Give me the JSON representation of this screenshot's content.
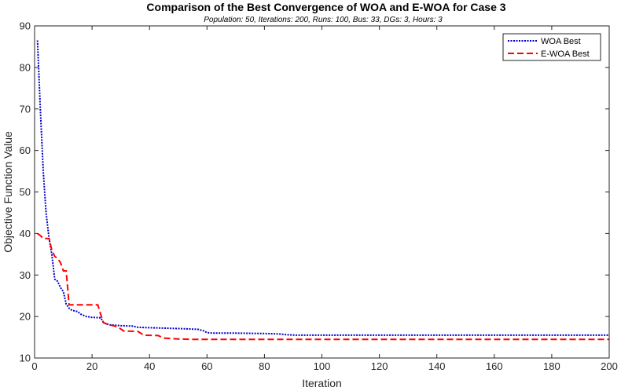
{
  "chart_data": {
    "type": "line",
    "title": "Comparison of the Best Convergence of WOA and E-WOA for Case 3",
    "subtitle": "Population: 50, Iterations: 200, Runs: 100, Bus: 33, DGs: 3, Hours: 3",
    "xlabel": "Iteration",
    "ylabel": "Objective Function Value",
    "xlim": [
      0,
      200
    ],
    "ylim": [
      10,
      90
    ],
    "xticks": [
      0,
      20,
      40,
      60,
      80,
      100,
      120,
      140,
      160,
      180,
      200
    ],
    "yticks": [
      10,
      20,
      30,
      40,
      50,
      60,
      70,
      80,
      90
    ],
    "grid": false,
    "legend_position": "top-right",
    "series": [
      {
        "name": "WOA Best",
        "color": "#0000cc",
        "style": "dotted",
        "points": [
          [
            1,
            86.5
          ],
          [
            2,
            70
          ],
          [
            3,
            55
          ],
          [
            4,
            45
          ],
          [
            5,
            39
          ],
          [
            6,
            35
          ],
          [
            7,
            29
          ],
          [
            8,
            28.5
          ],
          [
            9,
            27
          ],
          [
            10,
            26
          ],
          [
            11,
            23
          ],
          [
            12,
            22
          ],
          [
            13,
            21.5
          ],
          [
            15,
            21.2
          ],
          [
            16,
            20.6
          ],
          [
            18,
            20
          ],
          [
            20,
            19.8
          ],
          [
            23,
            19.7
          ],
          [
            24,
            18.5
          ],
          [
            26,
            18
          ],
          [
            28,
            17.9
          ],
          [
            30,
            17.8
          ],
          [
            34,
            17.7
          ],
          [
            36,
            17.4
          ],
          [
            40,
            17.3
          ],
          [
            45,
            17.2
          ],
          [
            50,
            17.1
          ],
          [
            54,
            17.0
          ],
          [
            57,
            16.9
          ],
          [
            59,
            16.5
          ],
          [
            60,
            16.1
          ],
          [
            62,
            16.0
          ],
          [
            70,
            16.0
          ],
          [
            80,
            15.9
          ],
          [
            85,
            15.8
          ],
          [
            88,
            15.6
          ],
          [
            91,
            15.5
          ],
          [
            100,
            15.5
          ],
          [
            120,
            15.5
          ],
          [
            150,
            15.5
          ],
          [
            180,
            15.5
          ],
          [
            200,
            15.5
          ]
        ]
      },
      {
        "name": "E-WOA Best",
        "color": "#ff0000",
        "style": "dashed",
        "points": [
          [
            1,
            40
          ],
          [
            2,
            39.5
          ],
          [
            3,
            38.8
          ],
          [
            5,
            38.8
          ],
          [
            6,
            36
          ],
          [
            7,
            34.5
          ],
          [
            8,
            34
          ],
          [
            9,
            33
          ],
          [
            10,
            31
          ],
          [
            11,
            31
          ],
          [
            12,
            22.8
          ],
          [
            20,
            22.8
          ],
          [
            22,
            22.8
          ],
          [
            23,
            20.5
          ],
          [
            24,
            18.5
          ],
          [
            26,
            18
          ],
          [
            29,
            17.5
          ],
          [
            31,
            16.5
          ],
          [
            36,
            16.4
          ],
          [
            38,
            15.5
          ],
          [
            43,
            15.4
          ],
          [
            45,
            14.8
          ],
          [
            50,
            14.6
          ],
          [
            55,
            14.5
          ],
          [
            100,
            14.5
          ],
          [
            150,
            14.5
          ],
          [
            200,
            14.5
          ]
        ]
      }
    ]
  }
}
